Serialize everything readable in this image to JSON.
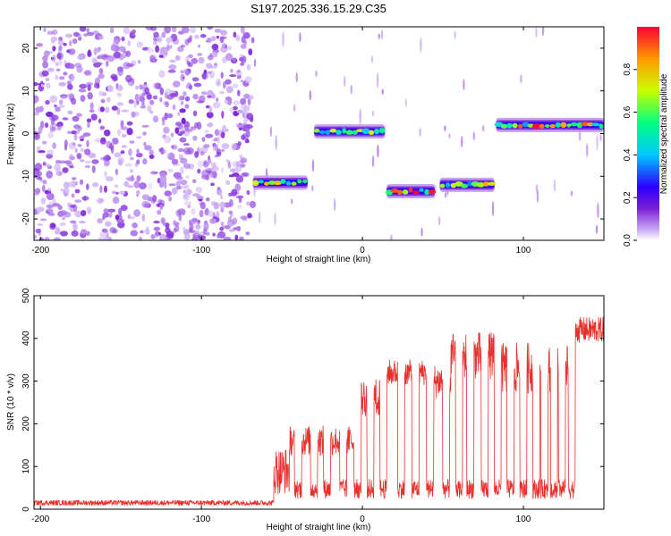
{
  "title": "S197.2025.336.15.29.C35",
  "colors": {
    "snr_line": "#e8312d",
    "speckle": "#7a1fd6",
    "colorbar_stops": [
      "#ffffff",
      "#c9a8f5",
      "#7a1fd6",
      "#2b00ff",
      "#00c8ff",
      "#00ff80",
      "#c8ff00",
      "#ff9900",
      "#ff0033"
    ]
  },
  "chart_data": [
    {
      "type": "heatmap",
      "xlabel": "Height of straight line (km)",
      "ylabel": "Frequency (Hz)",
      "xlim": [
        -204,
        150
      ],
      "ylim": [
        -25,
        25
      ],
      "xticks": [
        -200,
        -100,
        0,
        100
      ],
      "yticks": [
        -20,
        -10,
        0,
        10,
        20
      ],
      "colorbar": {
        "label": "Normalized spectral amplitude",
        "range": [
          0.0,
          1.0
        ],
        "ticks": [
          "0.0",
          "0.2",
          "0.4",
          "0.6",
          "0.8"
        ]
      },
      "noise_region_x": [
        -204,
        -68
      ],
      "tracks": [
        {
          "x": [
            -68,
            -34
          ],
          "y": -11.5,
          "peak": 0.85
        },
        {
          "x": [
            -30,
            14
          ],
          "y": 0.5,
          "peak": 0.75
        },
        {
          "x": [
            15,
            45
          ],
          "y": -13.5,
          "peak": 1.0
        },
        {
          "x": [
            48,
            82
          ],
          "y": -12.0,
          "peak": 0.95
        },
        {
          "x": [
            83,
            150
          ],
          "y": 2.0,
          "peak": 1.0
        }
      ]
    },
    {
      "type": "line",
      "xlabel": "Height of straight line (km)",
      "ylabel": "SNR (10 * v/v)",
      "xlim": [
        -204,
        150
      ],
      "ylim": [
        0,
        500
      ],
      "xticks": [
        -200,
        -100,
        0,
        100
      ],
      "yticks": [
        0,
        100,
        200,
        300,
        400,
        500
      ],
      "series": [
        {
          "segments": [
            {
              "x": [
                -204,
                -55
              ],
              "baseline": 15,
              "amplitude": 12
            },
            {
              "x": [
                -55,
                -45
              ],
              "baseline": 90,
              "amplitude": 110
            },
            {
              "x": [
                -45,
                -5
              ],
              "baseline": 160,
              "amplitude": 70
            },
            {
              "x": [
                -5,
                15
              ],
              "baseline": 260,
              "amplitude": 90
            },
            {
              "x": [
                15,
                40
              ],
              "baseline": 320,
              "amplitude": 60
            },
            {
              "x": [
                40,
                55
              ],
              "baseline": 300,
              "amplitude": 80
            },
            {
              "x": [
                55,
                85
              ],
              "baseline": 360,
              "amplitude": 110
            },
            {
              "x": [
                85,
                130
              ],
              "baseline": 330,
              "amplitude": 120
            },
            {
              "x": [
                130,
                150
              ],
              "baseline": 420,
              "amplitude": 60
            }
          ],
          "dropouts": [
            -40,
            -30,
            -22,
            -12,
            -3,
            5,
            13,
            24,
            33,
            42,
            52,
            60,
            67,
            76,
            84,
            92,
            100,
            108,
            113,
            119,
            124,
            130
          ]
        }
      ]
    }
  ]
}
